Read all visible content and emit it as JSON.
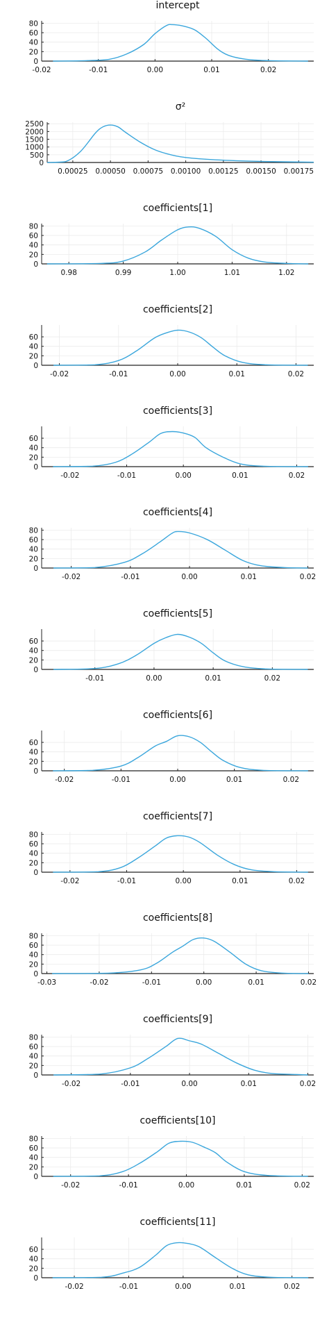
{
  "chart_data": [
    {
      "type": "line",
      "title": "intercept",
      "xlim": [
        -0.02,
        0.028
      ],
      "ylim": [
        0,
        85
      ],
      "xticks": [
        -0.02,
        -0.01,
        0.0,
        0.01,
        0.02
      ],
      "xtick_labels": [
        "-0.02",
        "-0.01",
        "0.00",
        "0.01",
        "0.02"
      ],
      "yticks": [
        0,
        20,
        40,
        60,
        80
      ],
      "ytick_labels": [
        "0",
        "20",
        "40",
        "60",
        "80"
      ],
      "grid": true,
      "series": [
        {
          "color": "#3aa6dc",
          "x": [
            -0.018,
            -0.012,
            -0.008,
            -0.005,
            -0.002,
            0.0,
            0.002,
            0.003,
            0.005,
            0.007,
            0.009,
            0.011,
            0.013,
            0.016,
            0.02,
            0.027
          ],
          "y": [
            0,
            1,
            4,
            15,
            35,
            58,
            75,
            77,
            74,
            66,
            48,
            26,
            12,
            4,
            1,
            0
          ]
        }
      ]
    },
    {
      "type": "line",
      "title": "σ²",
      "xlim": [
        8e-05,
        0.00185
      ],
      "ylim": [
        0,
        2600
      ],
      "xticks": [
        0.00025,
        0.0005,
        0.00075,
        0.001,
        0.00125,
        0.0015,
        0.00175
      ],
      "xtick_labels": [
        "0.00025",
        "0.00050",
        "0.00075",
        "0.00100",
        "0.00125",
        "0.00150",
        "0.00175"
      ],
      "yticks": [
        0,
        500,
        1000,
        1500,
        2000,
        2500
      ],
      "ytick_labels": [
        "0",
        "500",
        "1000",
        "1500",
        "2000",
        "2500"
      ],
      "grid": true,
      "series": [
        {
          "color": "#3aa6dc",
          "x": [
            8e-05,
            0.0002,
            0.0003,
            0.0004,
            0.00045,
            0.0005,
            0.00055,
            0.0006,
            0.0007,
            0.0008,
            0.0009,
            0.001,
            0.0012,
            0.0015,
            0.00185
          ],
          "y": [
            0,
            50,
            700,
            1900,
            2300,
            2420,
            2300,
            1950,
            1300,
            800,
            500,
            320,
            170,
            70,
            20
          ]
        }
      ]
    },
    {
      "type": "line",
      "title": "coefficients[1]",
      "xlim": [
        0.975,
        1.025
      ],
      "ylim": [
        0,
        85
      ],
      "xticks": [
        0.98,
        0.99,
        1.0,
        1.01,
        1.02
      ],
      "xtick_labels": [
        "0.98",
        "0.99",
        "1.00",
        "1.01",
        "1.02"
      ],
      "yticks": [
        0,
        20,
        40,
        60,
        80
      ],
      "ytick_labels": [
        "0",
        "20",
        "40",
        "60",
        "80"
      ],
      "grid": true,
      "series": [
        {
          "color": "#3aa6dc",
          "x": [
            0.976,
            0.986,
            0.99,
            0.994,
            0.997,
            1.0,
            1.002,
            1.004,
            1.007,
            1.01,
            1.013,
            1.016,
            1.02,
            1.024
          ],
          "y": [
            0,
            1,
            6,
            25,
            50,
            72,
            78,
            75,
            58,
            30,
            12,
            4,
            1,
            0
          ]
        }
      ]
    },
    {
      "type": "line",
      "title": "coefficients[2]",
      "xlim": [
        -0.023,
        0.023
      ],
      "ylim": [
        0,
        85
      ],
      "xticks": [
        -0.02,
        -0.01,
        0.0,
        0.01,
        0.02
      ],
      "xtick_labels": [
        "-0.02",
        "-0.01",
        "0.00",
        "0.01",
        "0.02"
      ],
      "yticks": [
        0,
        20,
        40,
        60
      ],
      "ytick_labels": [
        "0",
        "20",
        "40",
        "60"
      ],
      "grid": true,
      "series": [
        {
          "color": "#3aa6dc",
          "x": [
            -0.021,
            -0.014,
            -0.01,
            -0.007,
            -0.004,
            -0.002,
            0.0,
            0.002,
            0.004,
            0.006,
            0.008,
            0.011,
            0.015,
            0.022
          ],
          "y": [
            0,
            1,
            10,
            30,
            57,
            68,
            74,
            70,
            58,
            38,
            20,
            6,
            1,
            0
          ]
        }
      ]
    },
    {
      "type": "line",
      "title": "coefficients[3]",
      "xlim": [
        -0.025,
        0.023
      ],
      "ylim": [
        0,
        85
      ],
      "xticks": [
        -0.02,
        -0.01,
        0.0,
        0.01,
        0.02
      ],
      "xtick_labels": [
        "-0.02",
        "-0.01",
        "0.00",
        "0.01",
        "0.02"
      ],
      "yticks": [
        0,
        20,
        40,
        60
      ],
      "ytick_labels": [
        "0",
        "20",
        "40",
        "60"
      ],
      "grid": true,
      "series": [
        {
          "color": "#3aa6dc",
          "x": [
            -0.023,
            -0.016,
            -0.012,
            -0.009,
            -0.006,
            -0.004,
            -0.002,
            0.0,
            0.002,
            0.004,
            0.007,
            0.01,
            0.014,
            0.022
          ],
          "y": [
            0,
            1,
            9,
            27,
            52,
            70,
            74,
            71,
            62,
            40,
            20,
            6,
            1,
            0
          ]
        }
      ]
    },
    {
      "type": "line",
      "title": "coefficients[4]",
      "xlim": [
        -0.025,
        0.021
      ],
      "ylim": [
        0,
        85
      ],
      "xticks": [
        -0.02,
        -0.01,
        0.0,
        0.01,
        0.02
      ],
      "xtick_labels": [
        "-0.02",
        "-0.01",
        "0.00",
        "0.01",
        "0.02"
      ],
      "yticks": [
        0,
        20,
        40,
        60,
        80
      ],
      "ytick_labels": [
        "0",
        "20",
        "40",
        "60",
        "80"
      ],
      "grid": true,
      "series": [
        {
          "color": "#3aa6dc",
          "x": [
            -0.023,
            -0.016,
            -0.011,
            -0.008,
            -0.005,
            -0.003,
            -0.002,
            0.0,
            0.003,
            0.006,
            0.009,
            0.012,
            0.016,
            0.02
          ],
          "y": [
            0,
            1,
            12,
            30,
            55,
            73,
            77,
            74,
            60,
            38,
            16,
            5,
            1,
            0
          ]
        }
      ]
    },
    {
      "type": "line",
      "title": "coefficients[5]",
      "xlim": [
        -0.019,
        0.027
      ],
      "ylim": [
        0,
        85
      ],
      "xticks": [
        -0.01,
        0.0,
        0.01,
        0.02
      ],
      "xtick_labels": [
        "-0.01",
        "0.00",
        "0.01",
        "0.02"
      ],
      "yticks": [
        0,
        20,
        40,
        60
      ],
      "ytick_labels": [
        "0",
        "20",
        "40",
        "60"
      ],
      "grid": true,
      "series": [
        {
          "color": "#3aa6dc",
          "x": [
            -0.017,
            -0.01,
            -0.006,
            -0.003,
            0.0,
            0.002,
            0.004,
            0.006,
            0.008,
            0.01,
            0.012,
            0.015,
            0.019,
            0.026
          ],
          "y": [
            0,
            2,
            12,
            30,
            55,
            67,
            74,
            68,
            55,
            35,
            18,
            6,
            1,
            0
          ]
        }
      ]
    },
    {
      "type": "line",
      "title": "coefficients[6]",
      "xlim": [
        -0.024,
        0.024
      ],
      "ylim": [
        0,
        85
      ],
      "xticks": [
        -0.02,
        -0.01,
        0.0,
        0.01,
        0.02
      ],
      "xtick_labels": [
        "-0.02",
        "-0.01",
        "0.00",
        "0.01",
        "0.02"
      ],
      "yticks": [
        0,
        20,
        40,
        60
      ],
      "ytick_labels": [
        "0",
        "20",
        "40",
        "60"
      ],
      "grid": true,
      "series": [
        {
          "color": "#3aa6dc",
          "x": [
            -0.022,
            -0.015,
            -0.01,
            -0.007,
            -0.004,
            -0.002,
            0.0,
            0.002,
            0.004,
            0.006,
            0.008,
            0.011,
            0.015,
            0.023
          ],
          "y": [
            0,
            1,
            10,
            28,
            52,
            62,
            74,
            72,
            60,
            40,
            22,
            7,
            1,
            0
          ]
        }
      ]
    },
    {
      "type": "line",
      "title": "coefficients[7]",
      "xlim": [
        -0.025,
        0.023
      ],
      "ylim": [
        0,
        85
      ],
      "xticks": [
        -0.02,
        -0.01,
        0.0,
        0.01,
        0.02
      ],
      "xtick_labels": [
        "-0.02",
        "-0.01",
        "0.00",
        "0.01",
        "0.02"
      ],
      "yticks": [
        0,
        20,
        40,
        60,
        80
      ],
      "ytick_labels": [
        "0",
        "20",
        "40",
        "60",
        "80"
      ],
      "grid": true,
      "series": [
        {
          "color": "#3aa6dc",
          "x": [
            -0.023,
            -0.015,
            -0.011,
            -0.008,
            -0.005,
            -0.003,
            -0.001,
            0.001,
            0.003,
            0.006,
            0.009,
            0.012,
            0.016,
            0.022
          ],
          "y": [
            0,
            1,
            10,
            30,
            55,
            72,
            77,
            74,
            62,
            36,
            16,
            5,
            1,
            0
          ]
        }
      ]
    },
    {
      "type": "line",
      "title": "coefficients[8]",
      "xlim": [
        -0.031,
        0.021
      ],
      "ylim": [
        0,
        85
      ],
      "xticks": [
        -0.03,
        -0.02,
        -0.01,
        0.0,
        0.01,
        0.02
      ],
      "xtick_labels": [
        "-0.03",
        "-0.02",
        "-0.01",
        "0.00",
        "0.01",
        "0.02"
      ],
      "yticks": [
        0,
        20,
        40,
        60,
        80
      ],
      "ytick_labels": [
        "0",
        "20",
        "40",
        "60",
        "80"
      ],
      "grid": true,
      "series": [
        {
          "color": "#3aa6dc",
          "x": [
            -0.029,
            -0.018,
            -0.012,
            -0.009,
            -0.006,
            -0.004,
            -0.002,
            0.0,
            0.002,
            0.005,
            0.008,
            0.011,
            0.015,
            0.02
          ],
          "y": [
            0,
            1,
            8,
            22,
            45,
            58,
            72,
            75,
            68,
            45,
            20,
            6,
            1,
            0
          ]
        }
      ]
    },
    {
      "type": "line",
      "title": "coefficients[9]",
      "xlim": [
        -0.025,
        0.021
      ],
      "ylim": [
        0,
        85
      ],
      "xticks": [
        -0.02,
        -0.01,
        0.0,
        0.01,
        0.02
      ],
      "xtick_labels": [
        "-0.02",
        "-0.01",
        "0.00",
        "0.01",
        "0.02"
      ],
      "yticks": [
        0,
        20,
        40,
        60,
        80
      ],
      "ytick_labels": [
        "0",
        "20",
        "40",
        "60",
        "80"
      ],
      "grid": true,
      "series": [
        {
          "color": "#3aa6dc",
          "x": [
            -0.023,
            -0.015,
            -0.01,
            -0.007,
            -0.004,
            -0.002,
            0.0,
            0.002,
            0.005,
            0.008,
            0.011,
            0.014,
            0.018,
            0.02
          ],
          "y": [
            0,
            2,
            15,
            35,
            60,
            77,
            72,
            65,
            45,
            25,
            10,
            3,
            1,
            0
          ]
        }
      ]
    },
    {
      "type": "line",
      "title": "coefficients[10]",
      "xlim": [
        -0.025,
        0.022
      ],
      "ylim": [
        0,
        85
      ],
      "xticks": [
        -0.02,
        -0.01,
        0.0,
        0.01,
        0.02
      ],
      "xtick_labels": [
        "-0.02",
        "-0.01",
        "0.00",
        "0.01",
        "0.02"
      ],
      "yticks": [
        0,
        20,
        40,
        60,
        80
      ],
      "ytick_labels": [
        "0",
        "20",
        "40",
        "60",
        "80"
      ],
      "grid": true,
      "series": [
        {
          "color": "#3aa6dc",
          "x": [
            -0.023,
            -0.015,
            -0.011,
            -0.008,
            -0.005,
            -0.003,
            -0.001,
            0.001,
            0.003,
            0.005,
            0.007,
            0.01,
            0.014,
            0.021
          ],
          "y": [
            0,
            1,
            10,
            28,
            52,
            70,
            74,
            72,
            62,
            50,
            30,
            10,
            2,
            0
          ]
        }
      ]
    },
    {
      "type": "line",
      "title": "coefficients[11]",
      "xlim": [
        -0.026,
        0.024
      ],
      "ylim": [
        0,
        85
      ],
      "xticks": [
        -0.02,
        -0.01,
        0.0,
        0.01,
        0.02
      ],
      "xtick_labels": [
        "-0.02",
        "-0.01",
        "0.00",
        "0.01",
        "0.02"
      ],
      "yticks": [
        0,
        20,
        40,
        60
      ],
      "ytick_labels": [
        "0",
        "20",
        "40",
        "60"
      ],
      "grid": true,
      "series": [
        {
          "color": "#3aa6dc",
          "x": [
            -0.024,
            -0.015,
            -0.011,
            -0.008,
            -0.005,
            -0.003,
            -0.001,
            0.001,
            0.003,
            0.006,
            0.009,
            0.012,
            0.016,
            0.023
          ],
          "y": [
            0,
            1,
            10,
            22,
            48,
            68,
            74,
            72,
            65,
            42,
            20,
            6,
            1,
            0
          ]
        }
      ]
    }
  ]
}
